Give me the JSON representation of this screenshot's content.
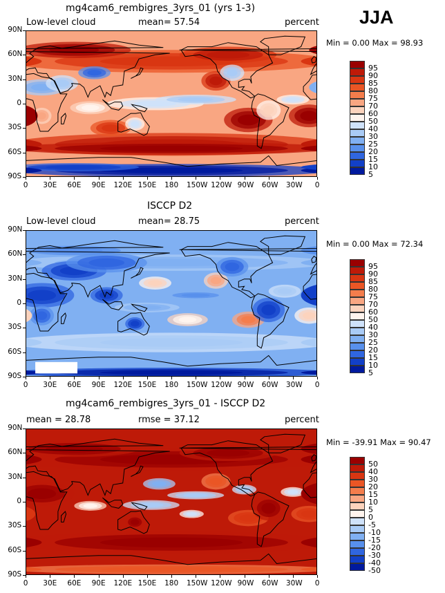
{
  "season": "JJA",
  "panels": [
    {
      "title": "mg4cam6_rembigres_3yrs_01 (yrs 1-3)",
      "left_label": "Low-level cloud",
      "center_label": "mean=  57.54",
      "right_label": "percent",
      "minmax": "Min =    0.00 Max =  98.93"
    },
    {
      "title": "ISCCP D2",
      "left_label": "Low-level cloud",
      "center_label": "mean=  28.75",
      "right_label": "percent",
      "minmax": "Min =    0.00 Max =  72.34"
    },
    {
      "title": "mg4cam6_rembigres_3yrs_01 - ISCCP D2",
      "left_label": "mean =  28.78",
      "center_label": "rmse =  37.12",
      "right_label": "percent",
      "minmax": "Min = -39.91 Max =  90.47"
    }
  ],
  "chart_data": [
    {
      "type": "heatmap",
      "title": "mg4cam6_rembigres_3yrs_01 (yrs 1-3)",
      "variable": "Low-level cloud",
      "units": "percent",
      "mean": 57.54,
      "min": 0.0,
      "max": 98.93,
      "x_ticks": [
        "0",
        "30E",
        "60E",
        "90E",
        "120E",
        "150E",
        "180",
        "150W",
        "120W",
        "90W",
        "60W",
        "30W",
        "0"
      ],
      "y_ticks": [
        "90N",
        "60N",
        "30N",
        "0",
        "30S",
        "60S",
        "90S"
      ],
      "colorbar_levels": [
        "95",
        "90",
        "85",
        "80",
        "75",
        "70",
        "60",
        "50",
        "40",
        "30",
        "25",
        "20",
        "15",
        "10",
        "5"
      ]
    },
    {
      "type": "heatmap",
      "title": "ISCCP D2",
      "variable": "Low-level cloud",
      "units": "percent",
      "mean": 28.75,
      "min": 0.0,
      "max": 72.34,
      "x_ticks": [
        "0",
        "30E",
        "60E",
        "90E",
        "120E",
        "150E",
        "180",
        "150W",
        "120W",
        "90W",
        "60W",
        "30W",
        "0"
      ],
      "y_ticks": [
        "90N",
        "60N",
        "30N",
        "0",
        "30S",
        "60S",
        "90S"
      ],
      "colorbar_levels": [
        "95",
        "90",
        "85",
        "80",
        "75",
        "70",
        "60",
        "50",
        "40",
        "30",
        "25",
        "20",
        "15",
        "10",
        "5"
      ]
    },
    {
      "type": "heatmap",
      "title": "mg4cam6_rembigres_3yrs_01 - ISCCP D2",
      "units": "percent",
      "mean": 28.78,
      "rmse": 37.12,
      "min": -39.91,
      "max": 90.47,
      "x_ticks": [
        "0",
        "30E",
        "60E",
        "90E",
        "120E",
        "150E",
        "180",
        "150W",
        "120W",
        "90W",
        "60W",
        "30W",
        "0"
      ],
      "y_ticks": [
        "90N",
        "60N",
        "30N",
        "0",
        "30S",
        "60S",
        "90S"
      ],
      "colorbar_levels": [
        "50",
        "40",
        "30",
        "20",
        "15",
        "10",
        "5",
        "0",
        "-5",
        "-10",
        "-15",
        "-20",
        "-30",
        "-40",
        "-50"
      ]
    }
  ],
  "colors": {
    "seq": [
      "#9a0000",
      "#be1a08",
      "#d93612",
      "#ea5625",
      "#f47d4c",
      "#f9a682",
      "#fcd3bd",
      "#fff4ee",
      "#cfe2fa",
      "#a9cbf6",
      "#80b0f2",
      "#5890ec",
      "#3066e0",
      "#1240c8",
      "#001a9e"
    ]
  }
}
